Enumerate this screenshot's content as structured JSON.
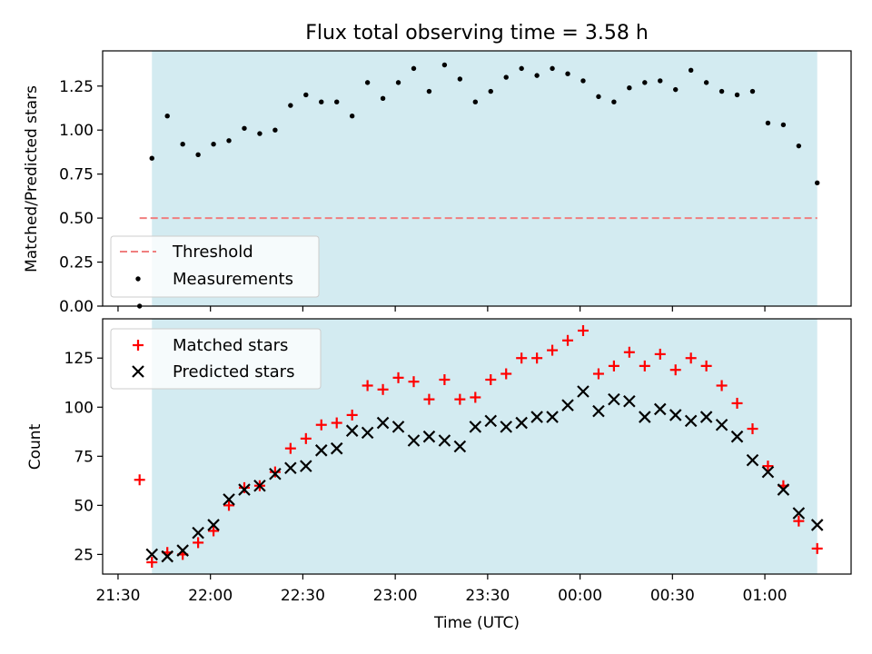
{
  "chart_data": [
    {
      "type": "scatter",
      "title": "Flux total observing time = 3.58 h",
      "xlabel": "",
      "ylabel": "Matched/Predicted stars",
      "xlim": [
        "21:25",
        "01:28"
      ],
      "ylim": [
        0,
        1.45
      ],
      "y_ticks": [
        0.0,
        0.25,
        0.5,
        0.75,
        1.0,
        1.25
      ],
      "y_tick_labels": [
        "0.00",
        "0.25",
        "0.50",
        "0.75",
        "1.00",
        "1.25"
      ],
      "shaded_span": [
        "21:41",
        "01:17"
      ],
      "shade_color": "#d3ebf1",
      "threshold": {
        "name": "Threshold",
        "y": 0.5,
        "x_range": [
          "21:37",
          "01:17"
        ],
        "color": "#f07f7f",
        "style": "dashed"
      },
      "series": [
        {
          "name": "Measurements",
          "marker": "dot",
          "color": "#000000",
          "x": [
            "21:37",
            "21:41",
            "21:46",
            "21:51",
            "21:56",
            "22:01",
            "22:06",
            "22:11",
            "22:16",
            "22:21",
            "22:26",
            "22:31",
            "22:36",
            "22:41",
            "22:46",
            "22:51",
            "22:56",
            "23:01",
            "23:06",
            "23:11",
            "23:16",
            "23:21",
            "23:26",
            "23:31",
            "23:36",
            "23:41",
            "23:46",
            "23:51",
            "23:56",
            "00:01",
            "00:06",
            "00:11",
            "00:16",
            "00:21",
            "00:26",
            "00:31",
            "00:36",
            "00:41",
            "00:46",
            "00:51",
            "00:56",
            "01:01",
            "01:06",
            "01:11",
            "01:17"
          ],
          "y": [
            0.0,
            0.84,
            1.08,
            0.92,
            0.86,
            0.92,
            0.94,
            1.01,
            0.98,
            1.0,
            1.14,
            1.2,
            1.16,
            1.16,
            1.08,
            1.27,
            1.18,
            1.27,
            1.35,
            1.22,
            1.37,
            1.29,
            1.16,
            1.22,
            1.3,
            1.35,
            1.31,
            1.35,
            1.32,
            1.28,
            1.19,
            1.16,
            1.24,
            1.27,
            1.28,
            1.23,
            1.34,
            1.27,
            1.22,
            1.2,
            1.22,
            1.04,
            1.03,
            0.91,
            0.7
          ]
        }
      ],
      "legend": {
        "placement": "lower-left",
        "entries": [
          "Threshold",
          "Measurements"
        ]
      }
    },
    {
      "type": "scatter",
      "title": "",
      "xlabel": "Time (UTC)",
      "ylabel": "Count",
      "xlim": [
        "21:25",
        "01:28"
      ],
      "ylim": [
        15,
        145
      ],
      "y_ticks": [
        25,
        50,
        75,
        100,
        125
      ],
      "y_tick_labels": [
        "25",
        "50",
        "75",
        "100",
        "125"
      ],
      "x_ticks": [
        "21:30",
        "22:00",
        "22:30",
        "23:00",
        "23:30",
        "00:00",
        "00:30",
        "01:00"
      ],
      "shaded_span": [
        "21:41",
        "01:17"
      ],
      "shade_color": "#d3ebf1",
      "series": [
        {
          "name": "Matched stars",
          "marker": "plus",
          "color": "#ff0000",
          "x": [
            "21:37",
            "21:41",
            "21:46",
            "21:51",
            "21:56",
            "22:01",
            "22:06",
            "22:11",
            "22:16",
            "22:21",
            "22:26",
            "22:31",
            "22:36",
            "22:41",
            "22:46",
            "22:51",
            "22:56",
            "23:01",
            "23:06",
            "23:11",
            "23:16",
            "23:21",
            "23:26",
            "23:31",
            "23:36",
            "23:41",
            "23:46",
            "23:51",
            "23:56",
            "00:01",
            "00:06",
            "00:11",
            "00:16",
            "00:21",
            "00:26",
            "00:31",
            "00:36",
            "00:41",
            "00:46",
            "00:51",
            "00:56",
            "01:01",
            "01:06",
            "01:11",
            "01:17"
          ],
          "y": [
            63,
            21,
            26,
            25,
            31,
            37,
            50,
            59,
            60,
            67,
            79,
            84,
            91,
            92,
            96,
            111,
            109,
            115,
            113,
            104,
            114,
            104,
            105,
            114,
            117,
            125,
            125,
            129,
            134,
            139,
            117,
            121,
            128,
            121,
            127,
            119,
            125,
            121,
            111,
            102,
            89,
            70,
            60,
            42,
            28
          ]
        },
        {
          "name": "Predicted stars",
          "marker": "x",
          "color": "#000000",
          "x": [
            "21:41",
            "21:46",
            "21:51",
            "21:56",
            "22:01",
            "22:06",
            "22:11",
            "22:16",
            "22:21",
            "22:26",
            "22:31",
            "22:36",
            "22:41",
            "22:46",
            "22:51",
            "22:56",
            "23:01",
            "23:06",
            "23:11",
            "23:16",
            "23:21",
            "23:26",
            "23:31",
            "23:36",
            "23:41",
            "23:46",
            "23:51",
            "23:56",
            "00:01",
            "00:06",
            "00:11",
            "00:16",
            "00:21",
            "00:26",
            "00:31",
            "00:36",
            "00:41",
            "00:46",
            "00:51",
            "00:56",
            "01:01",
            "01:06",
            "01:11",
            "01:17"
          ],
          "y": [
            25,
            24,
            27,
            36,
            40,
            53,
            58,
            60,
            66,
            69,
            70,
            78,
            79,
            88,
            87,
            92,
            90,
            83,
            85,
            83,
            80,
            90,
            93,
            90,
            92,
            95,
            95,
            101,
            108,
            98,
            104,
            103,
            95,
            99,
            96,
            93,
            95,
            91,
            85,
            73,
            67,
            58,
            46,
            40
          ]
        }
      ],
      "legend": {
        "placement": "upper-left",
        "entries": [
          "Matched stars",
          "Predicted stars"
        ]
      }
    }
  ]
}
